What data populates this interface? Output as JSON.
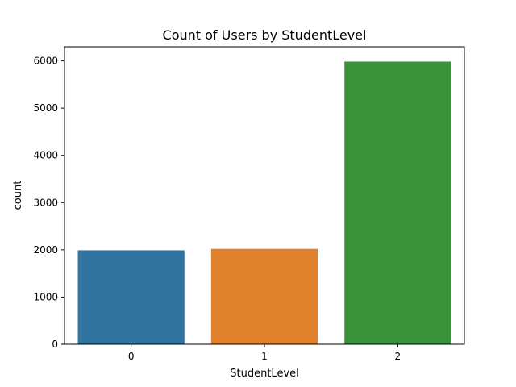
{
  "chart_data": {
    "type": "bar",
    "title": "Count of Users by StudentLevel",
    "xlabel": "StudentLevel",
    "ylabel": "count",
    "categories": [
      "0",
      "1",
      "2"
    ],
    "values": [
      1990,
      2020,
      5985
    ],
    "colors": [
      "#3274a1",
      "#e1812c",
      "#3a923a"
    ],
    "ylim": [
      0,
      6300
    ],
    "yticks": [
      0,
      1000,
      2000,
      3000,
      4000,
      5000,
      6000
    ],
    "grid": false,
    "legend": "none"
  }
}
